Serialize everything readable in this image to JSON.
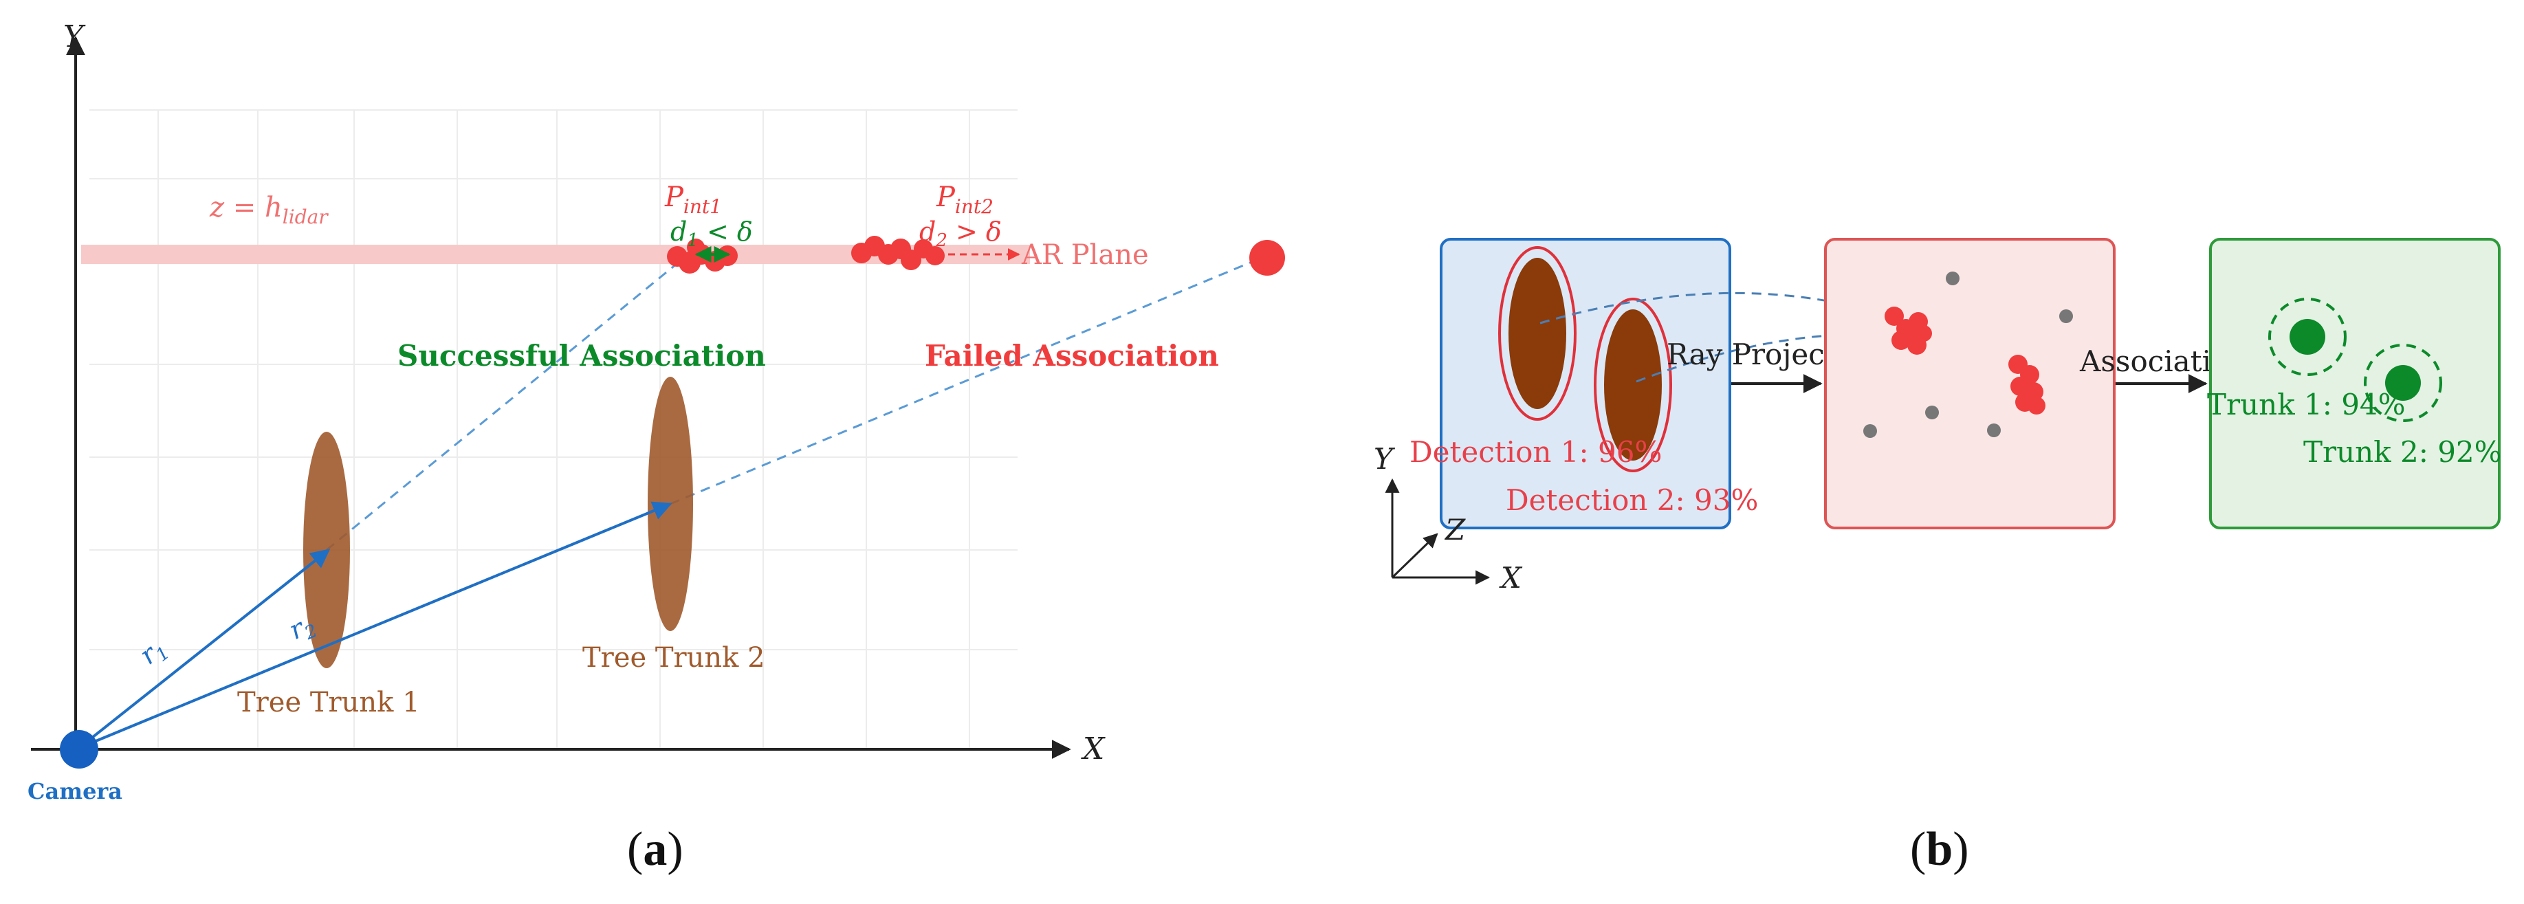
{
  "panel_a": {
    "caption_letter": "a",
    "axis_y_label": "Y",
    "axis_x_label": "X",
    "plane_equation": "z = h",
    "plane_equation_sub": "lidar",
    "plane_label": "AR Plane",
    "p_int1": "P",
    "p_int1_sub": "int1",
    "p_int2": "P",
    "p_int2_sub": "int2",
    "d1_label": "d",
    "d1_sub": "1",
    "d1_rel": " < δ",
    "d2_label": "d",
    "d2_sub": "2",
    "d2_rel": " > δ",
    "success_label": "Successful Association",
    "fail_label": "Failed Association",
    "trunk1_label": "Tree Trunk 1",
    "trunk2_label": "Tree Trunk 2",
    "camera_label": "Camera",
    "r1_label": "r",
    "r1_sub": "1",
    "r2_label": "r",
    "r2_sub": "2",
    "colors": {
      "ray": "#1f6fc4",
      "dashed": "#5a9bd5",
      "trunk": "#a05a2c",
      "red": "#f03c3c",
      "green": "#0c8a2a",
      "plane": "#f8c9c9"
    }
  },
  "panel_b": {
    "caption_letter": "b",
    "detection1_label": "Detection 1: 96%",
    "detection2_label": "Detection 2: 93%",
    "ray_projection_label": "Ray Projection",
    "association_label": "Association",
    "trunk1_label": "Trunk 1: 94%",
    "trunk2_label": "Trunk 2: 92%",
    "axis_x": "X",
    "axis_y": "Y",
    "axis_z": "Z",
    "colors": {
      "blue_box": "#dce8f5",
      "blue_border": "#1f6fc4",
      "red_box": "#fbe6e6",
      "red_border": "#dd5555",
      "green_box": "#e3f2e3",
      "green_border": "#2e9a3a"
    }
  }
}
